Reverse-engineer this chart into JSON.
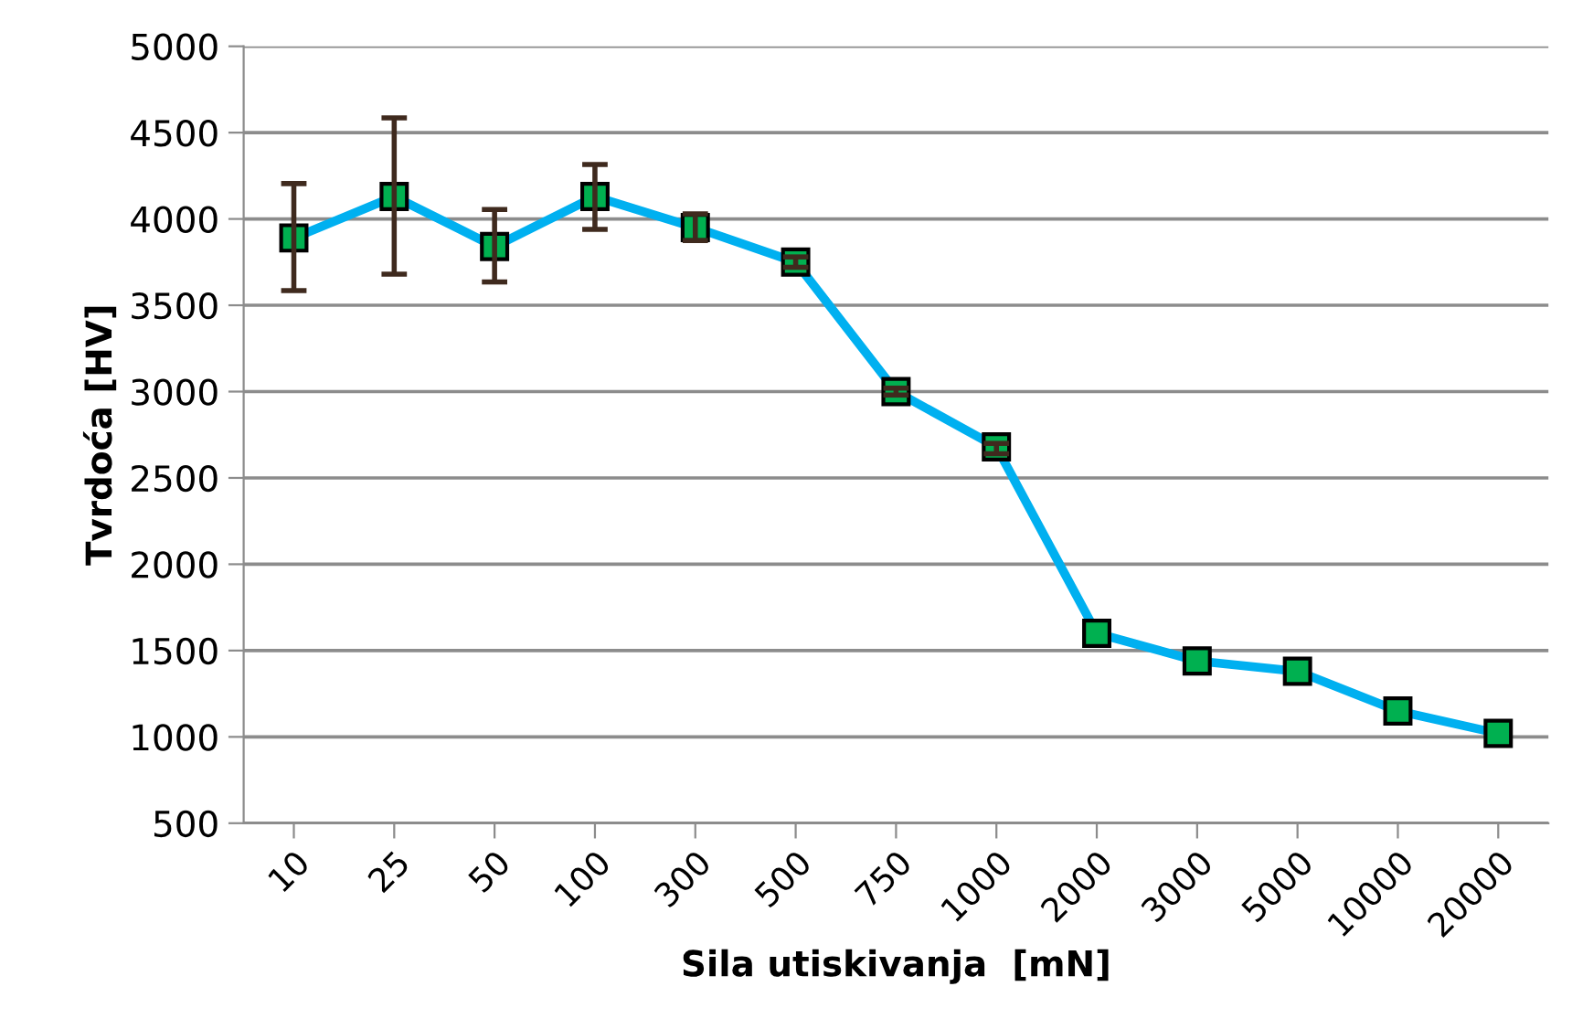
{
  "chart_data": {
    "type": "line",
    "xlabel": "Sila utiskivanja  [mN]",
    "ylabel": "Tvrdoća [HV]",
    "categories": [
      "10",
      "25",
      "50",
      "100",
      "300",
      "500",
      "750",
      "1000",
      "2000",
      "3000",
      "5000",
      "10000",
      "20000"
    ],
    "series": [
      {
        "color": "#00b0f0",
        "values": [
          3890,
          4130,
          3840,
          4130,
          3950,
          3750,
          3000,
          2680,
          1600,
          1440,
          1380,
          1150,
          1020
        ],
        "errors": [
          [
            3585,
            4205
          ],
          [
            3680,
            4585
          ],
          [
            3635,
            4055
          ],
          [
            3940,
            4315
          ],
          [
            3875,
            4030
          ],
          [
            3720,
            3780
          ],
          [
            2980,
            3020
          ],
          [
            2640,
            2700
          ],
          null,
          null,
          null,
          null,
          null
        ]
      }
    ],
    "marker": "square",
    "ylim": [
      500,
      5000
    ],
    "yticks": [
      500,
      1000,
      1500,
      2000,
      2500,
      3000,
      3500,
      4000,
      4500,
      5000
    ],
    "grid": "y",
    "legend": false
  }
}
